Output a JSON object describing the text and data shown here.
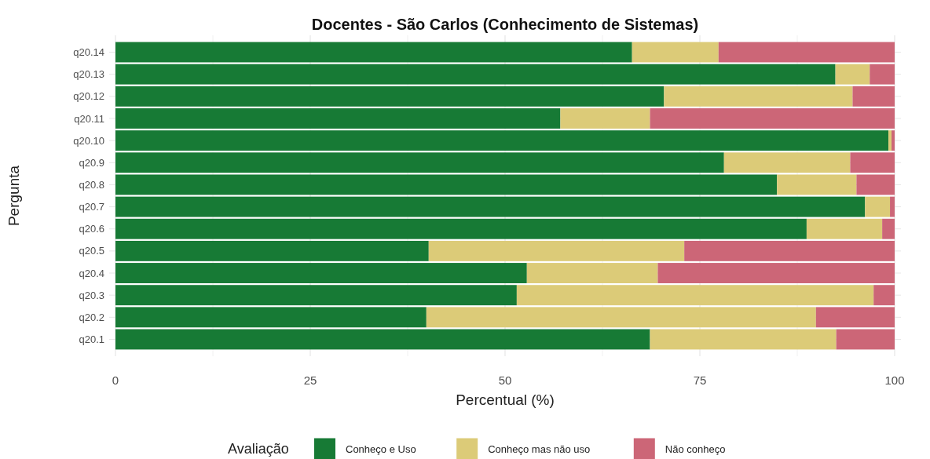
{
  "chart_data": {
    "type": "bar",
    "orientation": "horizontal",
    "stacked": true,
    "title": "Docentes - São Carlos (Conhecimento de Sistemas)",
    "xlabel": "Percentual (%)",
    "ylabel": "Pergunta",
    "legend_title": "Avaliação",
    "legend": "bottom",
    "grid": true,
    "categories": [
      "q20.14",
      "q20.13",
      "q20.12",
      "q20.11",
      "q20.10",
      "q20.9",
      "q20.8",
      "q20.7",
      "q20.6",
      "q20.5",
      "q20.4",
      "q20.3",
      "q20.2",
      "q20.1"
    ],
    "series": [
      {
        "name": "Conheço e Uso",
        "color": "#177a35",
        "values": [
          66.3,
          92.4,
          70.4,
          57.1,
          99.2,
          78.1,
          84.9,
          96.2,
          88.7,
          40.2,
          52.8,
          51.5,
          39.9,
          68.6
        ]
      },
      {
        "name": "Conheço mas não uso",
        "color": "#dccb78",
        "values": [
          11.1,
          4.4,
          24.2,
          11.5,
          0.4,
          16.2,
          10.2,
          3.2,
          9.7,
          32.8,
          16.8,
          45.8,
          50.0,
          23.9
        ]
      },
      {
        "name": "Não conheço",
        "color": "#cc6677",
        "values": [
          22.6,
          3.2,
          5.4,
          31.4,
          0.4,
          5.7,
          4.9,
          0.6,
          1.6,
          27.0,
          30.4,
          2.7,
          10.1,
          7.5
        ]
      }
    ],
    "xlim": [
      0,
      100
    ],
    "xticks": [
      0,
      25,
      50,
      75,
      100
    ]
  }
}
